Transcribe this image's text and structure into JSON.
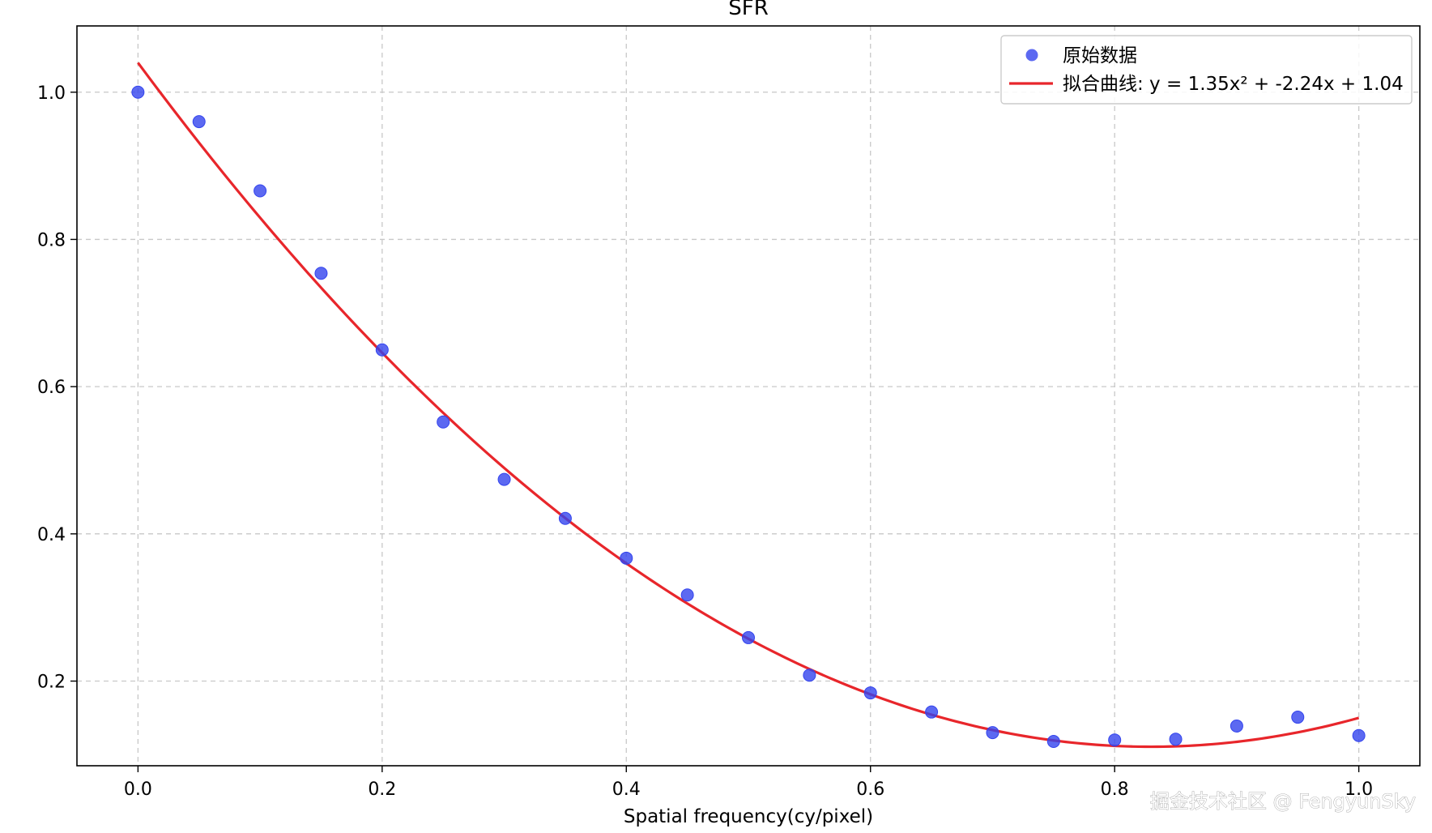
{
  "chart_data": {
    "type": "scatter",
    "title": "SFR",
    "xlabel": "Spatial frequency(cy/pixel)",
    "ylabel": "",
    "xlim": [
      -0.05,
      1.05
    ],
    "ylim": [
      0.085,
      1.09
    ],
    "xticks": [
      "0.0",
      "0.2",
      "0.4",
      "0.6",
      "0.8",
      "1.0"
    ],
    "yticks": [
      "0.2",
      "0.4",
      "0.6",
      "0.8",
      "1.0"
    ],
    "grid": true,
    "legend_placement": "top-right",
    "series": [
      {
        "name": "原始数据",
        "kind": "scatter",
        "color": "#3344ee",
        "x": [
          0.0,
          0.05,
          0.1,
          0.15,
          0.2,
          0.25,
          0.3,
          0.35,
          0.4,
          0.45,
          0.5,
          0.55,
          0.6,
          0.65,
          0.7,
          0.75,
          0.8,
          0.85,
          0.9,
          0.95,
          1.0
        ],
        "y": [
          1.0,
          0.96,
          0.866,
          0.754,
          0.65,
          0.552,
          0.474,
          0.421,
          0.367,
          0.317,
          0.259,
          0.208,
          0.184,
          0.158,
          0.13,
          0.118,
          0.12,
          0.121,
          0.139,
          0.151,
          0.126
        ]
      },
      {
        "name": "拟合曲线: y = 1.35x² + -2.24x + 1.04",
        "kind": "line",
        "color": "#e8262b",
        "equation": {
          "a": 1.35,
          "b": -2.24,
          "c": 1.04
        },
        "x_range": [
          0.0,
          1.0
        ]
      }
    ]
  },
  "watermark": "掘金技术社区 @ FengyunSky"
}
